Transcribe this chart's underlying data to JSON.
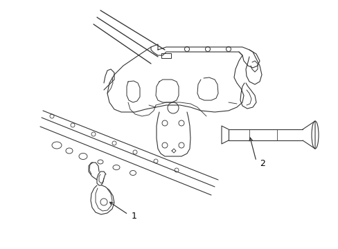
{
  "background_color": "#ffffff",
  "line_color": "#333333",
  "line_width": 0.8,
  "label1_text": "1",
  "label2_text": "2",
  "font_size": 9,
  "figsize": [
    4.89,
    3.6
  ],
  "dpi": 100
}
